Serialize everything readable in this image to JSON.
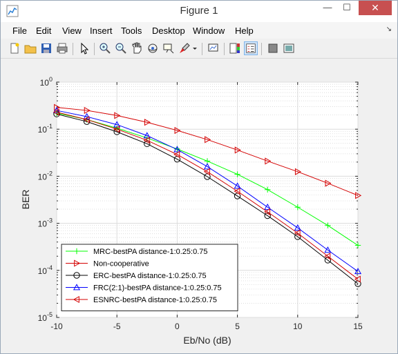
{
  "window": {
    "title": "Figure 1",
    "minimize": "—",
    "maximize": "☐",
    "close": "✕"
  },
  "menu": [
    "File",
    "Edit",
    "View",
    "Insert",
    "Tools",
    "Desktop",
    "Window",
    "Help"
  ],
  "dock_arrow": "↘",
  "toolbar_icons": [
    "new-figure-icon",
    "open-file-icon",
    "save-icon",
    "print-icon",
    "pointer-icon",
    "zoom-in-icon",
    "zoom-out-icon",
    "pan-icon",
    "rotate-3d-icon",
    "data-cursor-icon",
    "brush-icon",
    "brush-dropdown-icon",
    "link-plot-icon",
    "insert-colorbar-icon",
    "insert-legend-icon",
    "hide-plot-tools-icon",
    "show-plot-tools-icon"
  ],
  "colors": {
    "mrc": "#00ff00",
    "noncoop": "#d40000",
    "erc": "#000000",
    "frc": "#0000ff",
    "esnrc": "#d40000"
  },
  "chart_data": {
    "type": "line",
    "title": "",
    "xlabel": "Eb/No (dB)",
    "ylabel": "BER",
    "xlim": [
      -10,
      15
    ],
    "ylim": [
      1e-05,
      1
    ],
    "yscale": "log",
    "grid": true,
    "xticks": [
      "-10",
      "-5",
      "0",
      "5",
      "10",
      "15"
    ],
    "ytick_labels": [
      {
        "base": "10",
        "exp": "0"
      },
      {
        "base": "10",
        "exp": "-1"
      },
      {
        "base": "10",
        "exp": "-2"
      },
      {
        "base": "10",
        "exp": "-3"
      },
      {
        "base": "10",
        "exp": "-4"
      },
      {
        "base": "10",
        "exp": "-5"
      }
    ],
    "legend_position": "bottom-left",
    "x": [
      -10,
      -7.5,
      -5,
      -2.5,
      0,
      2.5,
      5,
      7.5,
      10,
      12.5,
      15
    ],
    "series": [
      {
        "name": "MRC-bestPA distance-1:0.25:0.75",
        "marker": "plus",
        "color_key": "mrc",
        "values": [
          0.22,
          0.16,
          0.105,
          0.065,
          0.038,
          0.021,
          0.011,
          0.0052,
          0.0022,
          0.0009,
          0.00034
        ]
      },
      {
        "name": "Non-cooperative",
        "marker": "triangle-right",
        "color_key": "noncoop",
        "values": [
          0.29,
          0.25,
          0.195,
          0.14,
          0.094,
          0.06,
          0.036,
          0.021,
          0.0125,
          0.0071,
          0.0039
        ]
      },
      {
        "name": "ERC-bestPA distance-1:0.25:0.75",
        "marker": "circle",
        "color_key": "erc",
        "values": [
          0.21,
          0.145,
          0.088,
          0.049,
          0.023,
          0.0098,
          0.0038,
          0.00145,
          0.00052,
          0.000165,
          5.2e-05
        ]
      },
      {
        "name": "FRC(2:1)-bestPA distance-1:0.25:0.75",
        "marker": "triangle-up",
        "color_key": "frc",
        "values": [
          0.25,
          0.185,
          0.125,
          0.073,
          0.037,
          0.016,
          0.0062,
          0.0022,
          0.0008,
          0.00027,
          9.5e-05
        ]
      },
      {
        "name": "ESNRC-bestPA distance-1:0.25:0.75",
        "marker": "triangle-left",
        "color_key": "esnrc",
        "values": [
          0.23,
          0.16,
          0.1,
          0.058,
          0.029,
          0.0125,
          0.0048,
          0.00175,
          0.00062,
          0.0002,
          6.5e-05
        ]
      }
    ]
  }
}
